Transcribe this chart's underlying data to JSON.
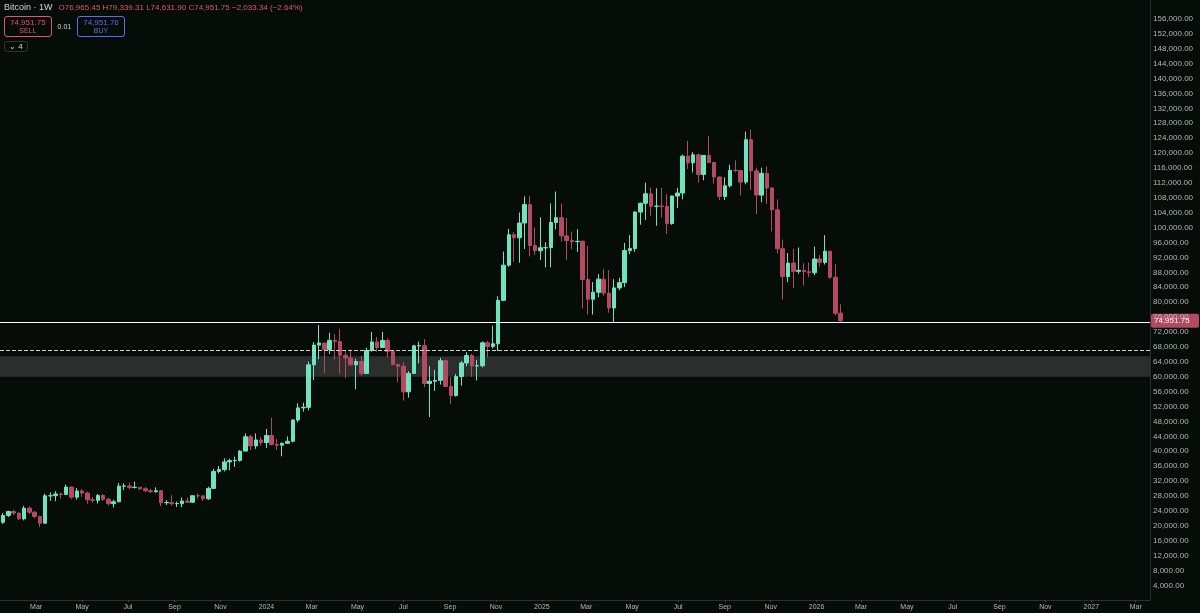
{
  "chart_data": {
    "type": "candlestick",
    "title": "Bitcoin · 1W",
    "annotations": [
      "O76,965.45 H79,339.31 L74,631.90 C74,951.75 −2,033.34 (−2.64%)",
      "74,951.75",
      "SELL",
      "0.01",
      "74,951.76",
      "BUY",
      "⌄ 4",
      "74,951.75"
    ],
    "series": [
      {
        "color": "#6fe3c0",
        "x": [
          "2023-01-16",
          "2023-01-23",
          "2023-02-13",
          "2023-03-13",
          "2023-03-20",
          "2023-03-27",
          "2023-04-10",
          "2023-04-24",
          "2023-05-22",
          "2023-06-12",
          "2023-06-19",
          "2023-06-26",
          "2023-07-10",
          "2023-08-07",
          "2023-08-21",
          "2023-09-04",
          "2023-09-11",
          "2023-09-25",
          "2023-10-16",
          "2023-10-23",
          "2023-10-30",
          "2023-11-06",
          "2023-11-13",
          "2023-11-20",
          "2023-11-27",
          "2023-12-04",
          "2023-12-18",
          "2024-01-01",
          "2024-01-22",
          "2024-01-29",
          "2024-02-05",
          "2024-02-12",
          "2024-02-19",
          "2024-02-26",
          "2024-03-04",
          "2024-03-11",
          "2024-03-25",
          "2024-04-29",
          "2024-05-13",
          "2024-05-20",
          "2024-06-03",
          "2024-07-08",
          "2024-07-15",
          "2024-07-22",
          "2024-08-05",
          "2024-08-12",
          "2024-08-19",
          "2024-09-09",
          "2024-09-16",
          "2024-09-23",
          "2024-10-07",
          "2024-10-14",
          "2024-10-28",
          "2024-11-04",
          "2024-11-11",
          "2024-11-18",
          "2024-12-02",
          "2024-12-09",
          "2024-12-30",
          "2025-01-06",
          "2025-01-13",
          "2025-01-20",
          "2025-02-17",
          "2025-03-10",
          "2025-03-17",
          "2025-04-07",
          "2025-04-14",
          "2025-04-21",
          "2025-04-28",
          "2025-05-05",
          "2025-05-12",
          "2025-05-19",
          "2025-06-02",
          "2025-06-23",
          "2025-06-30",
          "2025-07-07",
          "2025-07-21",
          "2025-08-04",
          "2025-09-01",
          "2025-09-08",
          "2025-09-29",
          "2025-10-20",
          "2025-11-24",
          "2025-12-08",
          "2025-12-29",
          "2026-01-12"
        ],
        "ohlc": [
          [
            20870,
            23370,
            20400,
            22700
          ],
          [
            22700,
            23950,
            22300,
            23750
          ],
          [
            21780,
            25250,
            21350,
            24630
          ],
          [
            20600,
            28500,
            20550,
            27950
          ],
          [
            27950,
            28900,
            26600,
            27980
          ],
          [
            27980,
            29200,
            26500,
            28450
          ],
          [
            28320,
            30950,
            28170,
            30300
          ],
          [
            27600,
            30050,
            26950,
            29250
          ],
          [
            26750,
            28400,
            25900,
            28050
          ],
          [
            25850,
            26900,
            24800,
            26350
          ],
          [
            26350,
            31400,
            26250,
            30550
          ],
          [
            30550,
            31300,
            29500,
            30600
          ],
          [
            30170,
            31800,
            29950,
            30250
          ],
          [
            29050,
            30250,
            28800,
            29300
          ],
          [
            26100,
            26800,
            25500,
            26150
          ],
          [
            25850,
            26400,
            24950,
            25900
          ],
          [
            25850,
            27500,
            24900,
            26550
          ],
          [
            26250,
            28050,
            26000,
            27980
          ],
          [
            27150,
            30400,
            26850,
            29950
          ],
          [
            29950,
            35200,
            29950,
            34500
          ],
          [
            34500,
            35950,
            34000,
            35000
          ],
          [
            35000,
            38000,
            34500,
            37050
          ],
          [
            37050,
            37950,
            34800,
            37400
          ],
          [
            37400,
            38450,
            35700,
            37450
          ],
          [
            37450,
            40200,
            37150,
            39950
          ],
          [
            39950,
            44700,
            39950,
            43800
          ],
          [
            41350,
            44700,
            40550,
            42950
          ],
          [
            42250,
            45900,
            40750,
            44150
          ],
          [
            41550,
            42250,
            38550,
            42050
          ],
          [
            42050,
            43900,
            41850,
            42600
          ],
          [
            42600,
            48500,
            42300,
            48300
          ],
          [
            48300,
            52800,
            47700,
            51550
          ],
          [
            51550,
            52950,
            50550,
            51700
          ],
          [
            51700,
            64000,
            50900,
            63100
          ],
          [
            63100,
            69200,
            59000,
            68400
          ],
          [
            68400,
            73800,
            64600,
            68950
          ],
          [
            67200,
            71700,
            66000,
            69650
          ],
          [
            63100,
            64750,
            56550,
            64000
          ],
          [
            60800,
            67700,
            60700,
            66950
          ],
          [
            66950,
            71950,
            66600,
            69250
          ],
          [
            67750,
            71950,
            67600,
            69650
          ],
          [
            55850,
            61400,
            54300,
            60800
          ],
          [
            60800,
            68350,
            60700,
            68200
          ],
          [
            68200,
            69350,
            63500,
            68250
          ],
          [
            58100,
            62700,
            49100,
            58700
          ],
          [
            58700,
            61800,
            56100,
            58950
          ],
          [
            58950,
            65000,
            57800,
            64200
          ],
          [
            54850,
            60650,
            54600,
            59950
          ],
          [
            59950,
            64100,
            57500,
            63600
          ],
          [
            63600,
            66500,
            62700,
            65600
          ],
          [
            62800,
            64450,
            58900,
            62850
          ],
          [
            62850,
            69400,
            62400,
            69000
          ],
          [
            68000,
            73600,
            67500,
            68750
          ],
          [
            68750,
            81500,
            66800,
            80400
          ],
          [
            80400,
            93500,
            80200,
            89850
          ],
          [
            89850,
            99600,
            89400,
            98000
          ],
          [
            97200,
            104000,
            90500,
            101150
          ],
          [
            101150,
            108300,
            94200,
            106100
          ],
          [
            93700,
            102700,
            91200,
            94500
          ],
          [
            94500,
            96000,
            89250,
            94550
          ],
          [
            94550,
            106400,
            89300,
            101300
          ],
          [
            101300,
            109600,
            99500,
            102600
          ],
          [
            96150,
            99500,
            93400,
            96250
          ],
          [
            80700,
            85300,
            76600,
            82600
          ],
          [
            82600,
            87450,
            81200,
            86100
          ],
          [
            78350,
            86100,
            74500,
            83750
          ],
          [
            83750,
            86450,
            83100,
            85150
          ],
          [
            85150,
            95800,
            83950,
            93750
          ],
          [
            93750,
            97900,
            92800,
            94300
          ],
          [
            94300,
            104300,
            93400,
            104100
          ],
          [
            104100,
            106650,
            100700,
            106450
          ],
          [
            106450,
            111950,
            102000,
            109000
          ],
          [
            105650,
            110500,
            100400,
            105700
          ],
          [
            101000,
            108550,
            100700,
            108400
          ],
          [
            108400,
            110600,
            105150,
            109200
          ],
          [
            109200,
            119500,
            107500,
            119100
          ],
          [
            117300,
            120200,
            114700,
            119450
          ],
          [
            114200,
            119300,
            112650,
            119300
          ],
          [
            108250,
            113400,
            107300,
            111150
          ],
          [
            111150,
            116800,
            110700,
            115300
          ],
          [
            112150,
            125700,
            111550,
            123500
          ],
          [
            108650,
            116000,
            106700,
            114500
          ],
          [
            86800,
            93100,
            85300,
            90400
          ],
          [
            88200,
            94600,
            87500,
            88450
          ],
          [
            87800,
            94800,
            87200,
            91500
          ],
          [
            90600,
            97900,
            90000,
            93600
          ]
        ]
      },
      {
        "color": "#b34a62",
        "x": [
          "2023-01-30",
          "2023-02-06",
          "2023-02-20",
          "2023-02-27",
          "2023-03-06",
          "2023-04-03",
          "2023-04-17",
          "2023-05-01",
          "2023-05-08",
          "2023-05-15",
          "2023-05-29",
          "2023-06-05",
          "2023-07-03",
          "2023-07-17",
          "2023-07-24",
          "2023-07-31",
          "2023-08-14",
          "2023-08-28",
          "2023-09-18",
          "2023-10-02",
          "2023-10-09",
          "2023-12-11",
          "2023-12-25",
          "2024-01-08",
          "2024-01-15",
          "2024-03-18",
          "2024-04-01",
          "2024-04-08",
          "2024-04-15",
          "2024-04-22",
          "2024-05-06",
          "2024-05-27",
          "2024-06-10",
          "2024-06-17",
          "2024-06-24",
          "2024-07-01",
          "2024-07-29",
          "2024-08-26",
          "2024-09-02",
          "2024-09-30",
          "2024-10-21",
          "2024-11-25",
          "2024-12-16",
          "2024-12-23",
          "2025-01-27",
          "2025-02-03",
          "2025-02-10",
          "2025-02-24",
          "2025-03-03",
          "2025-03-24",
          "2025-03-31",
          "2025-05-26",
          "2025-06-09",
          "2025-06-16",
          "2025-07-14",
          "2025-07-28",
          "2025-08-11",
          "2025-08-18",
          "2025-08-25",
          "2025-09-15",
          "2025-09-22",
          "2025-10-06",
          "2025-10-13",
          "2025-10-27",
          "2025-11-03",
          "2025-11-10",
          "2025-11-17",
          "2025-12-01",
          "2025-12-15",
          "2025-12-22",
          "2026-01-05",
          "2026-01-19",
          "2026-01-26",
          "2026-02-02"
        ],
        "ohlc": [
          [
            23750,
            24250,
            22750,
            23320
          ],
          [
            23320,
            23450,
            21450,
            21780
          ],
          [
            24630,
            25130,
            23080,
            23550
          ],
          [
            23550,
            23880,
            21880,
            22400
          ],
          [
            22400,
            22600,
            19550,
            20600
          ],
          [
            28450,
            28800,
            27200,
            28320
          ],
          [
            30300,
            30500,
            27100,
            27600
          ],
          [
            29250,
            29800,
            27700,
            28700
          ],
          [
            28700,
            29100,
            25800,
            26900
          ],
          [
            26900,
            27600,
            26100,
            26750
          ],
          [
            28050,
            28450,
            26550,
            27050
          ],
          [
            27050,
            27400,
            25350,
            25850
          ],
          [
            30600,
            31500,
            29700,
            30170
          ],
          [
            30250,
            30350,
            29550,
            29850
          ],
          [
            29850,
            30350,
            28900,
            29300
          ],
          [
            29300,
            29850,
            28700,
            29050
          ],
          [
            29300,
            29450,
            25200,
            26100
          ],
          [
            26100,
            28150,
            25300,
            25850
          ],
          [
            26550,
            27450,
            26000,
            26250
          ],
          [
            27980,
            28600,
            27200,
            27950
          ],
          [
            27950,
            28000,
            26550,
            27150
          ],
          [
            43800,
            44400,
            40200,
            41350
          ],
          [
            42950,
            43800,
            41450,
            42250
          ],
          [
            44150,
            48950,
            41500,
            41700
          ],
          [
            41700,
            43200,
            40300,
            41550
          ],
          [
            68950,
            68950,
            60800,
            67200
          ],
          [
            69650,
            71300,
            64500,
            69350
          ],
          [
            69350,
            72750,
            60700,
            65650
          ],
          [
            65650,
            66850,
            59600,
            64950
          ],
          [
            64950,
            67200,
            62800,
            63100
          ],
          [
            64000,
            65500,
            60200,
            60800
          ],
          [
            69250,
            70600,
            66600,
            67750
          ],
          [
            69650,
            70200,
            65100,
            66650
          ],
          [
            66650,
            66950,
            63000,
            63200
          ],
          [
            63200,
            63400,
            58400,
            62700
          ],
          [
            62700,
            63750,
            53500,
            55850
          ],
          [
            68250,
            70000,
            57100,
            58100
          ],
          [
            64200,
            64500,
            57200,
            57300
          ],
          [
            57300,
            59800,
            52550,
            54850
          ],
          [
            65600,
            66000,
            59850,
            62800
          ],
          [
            69000,
            69500,
            65100,
            68000
          ],
          [
            98000,
            98700,
            90800,
            97200
          ],
          [
            106100,
            108350,
            92200,
            95150
          ],
          [
            95150,
            99950,
            92600,
            93700
          ],
          [
            102600,
            106400,
            96200,
            97700
          ],
          [
            97700,
            102500,
            91200,
            96450
          ],
          [
            96450,
            98850,
            94100,
            96150
          ],
          [
            96250,
            96500,
            78200,
            86000
          ],
          [
            86000,
            95000,
            76600,
            80700
          ],
          [
            86100,
            88800,
            81600,
            82350
          ],
          [
            82350,
            88500,
            77100,
            78350
          ],
          [
            109000,
            110700,
            103100,
            105650
          ],
          [
            105700,
            110600,
            102650,
            105600
          ],
          [
            105600,
            108900,
            98200,
            101000
          ],
          [
            119100,
            123200,
            115700,
            117300
          ],
          [
            119450,
            119800,
            112000,
            114200
          ],
          [
            119300,
            124450,
            117200,
            117400
          ],
          [
            117400,
            117600,
            111700,
            113500
          ],
          [
            113500,
            113650,
            107300,
            108250
          ],
          [
            115300,
            118000,
            114800,
            115250
          ],
          [
            115250,
            115400,
            108600,
            112150
          ],
          [
            123500,
            126200,
            110000,
            115150
          ],
          [
            115150,
            116000,
            103500,
            108650
          ],
          [
            114500,
            116400,
            106300,
            110550
          ],
          [
            110550,
            110750,
            98900,
            104700
          ],
          [
            104700,
            107500,
            93000,
            94250
          ],
          [
            94250,
            96700,
            80600,
            86800
          ],
          [
            90400,
            94200,
            83800,
            88200
          ],
          [
            88450,
            90400,
            84400,
            88100
          ],
          [
            88100,
            90500,
            86600,
            87800
          ],
          [
            91500,
            92600,
            89400,
            90600
          ],
          [
            93600,
            93700,
            86200,
            86600
          ],
          [
            86600,
            90200,
            76400,
            76965.45
          ],
          [
            76965.45,
            79339.31,
            74631.9,
            74951.75
          ]
        ]
      }
    ],
    "ref_lines": [
      {
        "axis": "y",
        "value": 74500,
        "color": "#ffffff",
        "line_style": "solid"
      },
      {
        "axis": "y",
        "value": 67000,
        "color": "#cfcfcf",
        "line_style": "dashed"
      }
    ],
    "bands": [
      {
        "axis": "y",
        "from": 59900,
        "to": 65400,
        "color": "#2b2e2c"
      }
    ],
    "xlim": [
      "2023-01-12",
      "2027-03-20"
    ],
    "xticks": [
      {
        "value": "2023-03",
        "label": "Mar"
      },
      {
        "value": "2023-05",
        "label": "May"
      },
      {
        "value": "2023-07",
        "label": "Jul"
      },
      {
        "value": "2023-09",
        "label": "Sep"
      },
      {
        "value": "2023-11",
        "label": "Nov"
      },
      {
        "value": "2024-01",
        "label": "2024"
      },
      {
        "value": "2024-03",
        "label": "Mar"
      },
      {
        "value": "2024-05",
        "label": "May"
      },
      {
        "value": "2024-07",
        "label": "Jul"
      },
      {
        "value": "2024-09",
        "label": "Sep"
      },
      {
        "value": "2024-11",
        "label": "Nov"
      },
      {
        "value": "2025-01",
        "label": "2025"
      },
      {
        "value": "2025-03",
        "label": "Mar"
      },
      {
        "value": "2025-05",
        "label": "May"
      },
      {
        "value": "2025-07",
        "label": "Jul"
      },
      {
        "value": "2025-09",
        "label": "Sep"
      },
      {
        "value": "2025-11",
        "label": "Nov"
      },
      {
        "value": "2026-01",
        "label": "2026"
      },
      {
        "value": "2026-03",
        "label": "Mar"
      },
      {
        "value": "2026-05",
        "label": "May"
      },
      {
        "value": "2026-07",
        "label": "Jul"
      },
      {
        "value": "2026-09",
        "label": "Sep"
      },
      {
        "value": "2026-11",
        "label": "Nov"
      },
      {
        "value": "2027-01",
        "label": "2027"
      },
      {
        "value": "2027-03",
        "label": "Mar"
      }
    ],
    "ylim": [
      0,
      161000
    ],
    "yticks": [
      {
        "value": 4000,
        "label": "4,000.00"
      },
      {
        "value": 8000,
        "label": "8,000.00"
      },
      {
        "value": 12000,
        "label": "12,000.00"
      },
      {
        "value": 16000,
        "label": "16,000.00"
      },
      {
        "value": 20000,
        "label": "20,000.00"
      },
      {
        "value": 24000,
        "label": "24,000.00"
      },
      {
        "value": 28000,
        "label": "28,000.00"
      },
      {
        "value": 32000,
        "label": "32,000.00"
      },
      {
        "value": 36000,
        "label": "36,000.00"
      },
      {
        "value": 40000,
        "label": "40,000.00"
      },
      {
        "value": 44000,
        "label": "44,000.00"
      },
      {
        "value": 48000,
        "label": "48,000.00"
      },
      {
        "value": 52000,
        "label": "52,000.00"
      },
      {
        "value": 56000,
        "label": "56,000.00"
      },
      {
        "value": 60000,
        "label": "60,000.00"
      },
      {
        "value": 64000,
        "label": "64,000.00"
      },
      {
        "value": 68000,
        "label": "68,000.00"
      },
      {
        "value": 72000,
        "label": "72,000.00"
      },
      {
        "value": 76000,
        "label": "76,000.00"
      },
      {
        "value": 80000,
        "label": "80,000.00"
      },
      {
        "value": 84000,
        "label": "84,000.00"
      },
      {
        "value": 88000,
        "label": "88,000.00"
      },
      {
        "value": 92000,
        "label": "92,000.00"
      },
      {
        "value": 96000,
        "label": "96,000.00"
      },
      {
        "value": 100000,
        "label": "100,000.00"
      },
      {
        "value": 104000,
        "label": "104,000.00"
      },
      {
        "value": 108000,
        "label": "108,000.00"
      },
      {
        "value": 112000,
        "label": "112,000.00"
      },
      {
        "value": 116000,
        "label": "116,000.00"
      },
      {
        "value": 120000,
        "label": "120,000.00"
      },
      {
        "value": 124000,
        "label": "124,000.00"
      },
      {
        "value": 128000,
        "label": "128,000.00"
      },
      {
        "value": 132000,
        "label": "132,000.00"
      },
      {
        "value": 136000,
        "label": "136,000.00"
      },
      {
        "value": 140000,
        "label": "140,000.00"
      },
      {
        "value": 144000,
        "label": "144,000.00"
      },
      {
        "value": 148000,
        "label": "148,000.00"
      },
      {
        "value": 152000,
        "label": "152,000.00"
      },
      {
        "value": 156000,
        "label": "156,000.00"
      }
    ],
    "grid": false
  }
}
